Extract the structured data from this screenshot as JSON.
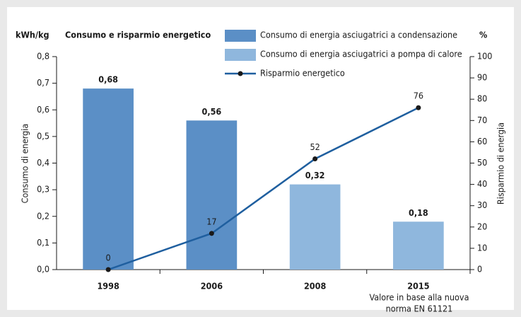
{
  "chart_data": {
    "type": "bar",
    "title": "Consumo e risparmio energetico",
    "y_unit": "kWh/kg",
    "y2_unit": "%",
    "ylabel": "Consumo di energia",
    "y2label": "Risparmio di energia",
    "categories": [
      "1998",
      "2006",
      "2008",
      "2015"
    ],
    "annotation": [
      "Valore in base alla nuova",
      "norma EN 61121"
    ],
    "series": [
      {
        "name": "Consumo di energia asciugatrici a condensazione",
        "type": "bar",
        "color": "#5b8fc6",
        "values": [
          0.68,
          0.56,
          null,
          null
        ],
        "value_labels": [
          "0,68",
          "0,56",
          null,
          null
        ]
      },
      {
        "name": "Consumo di energia asciugatrici a pompa di calore",
        "type": "bar",
        "color": "#8fb7dd",
        "values": [
          null,
          null,
          0.32,
          0.18
        ],
        "value_labels": [
          null,
          null,
          "0,32",
          "0,18"
        ]
      },
      {
        "name": "Risparmio energetico",
        "type": "line",
        "axis": "y2",
        "color": "#1f5f9f",
        "marker_color": "#1a1a1a",
        "values": [
          0,
          17,
          52,
          76
        ]
      }
    ],
    "ylim": [
      0,
      0.8
    ],
    "yticks": [
      {
        "value": 0,
        "label": "0,0"
      },
      {
        "value": 0.1,
        "label": "0,1"
      },
      {
        "value": 0.2,
        "label": "0,2"
      },
      {
        "value": 0.3,
        "label": "0,3"
      },
      {
        "value": 0.4,
        "label": "0,4"
      },
      {
        "value": 0.5,
        "label": "0,5"
      },
      {
        "value": 0.6,
        "label": "0,6"
      },
      {
        "value": 0.7,
        "label": "0,7"
      },
      {
        "value": 0.8,
        "label": "0,8"
      }
    ],
    "y2lim": [
      0,
      100
    ],
    "y2ticks": [
      0,
      10,
      20,
      30,
      40,
      50,
      60,
      70,
      80,
      90,
      100
    ],
    "grid": false
  }
}
